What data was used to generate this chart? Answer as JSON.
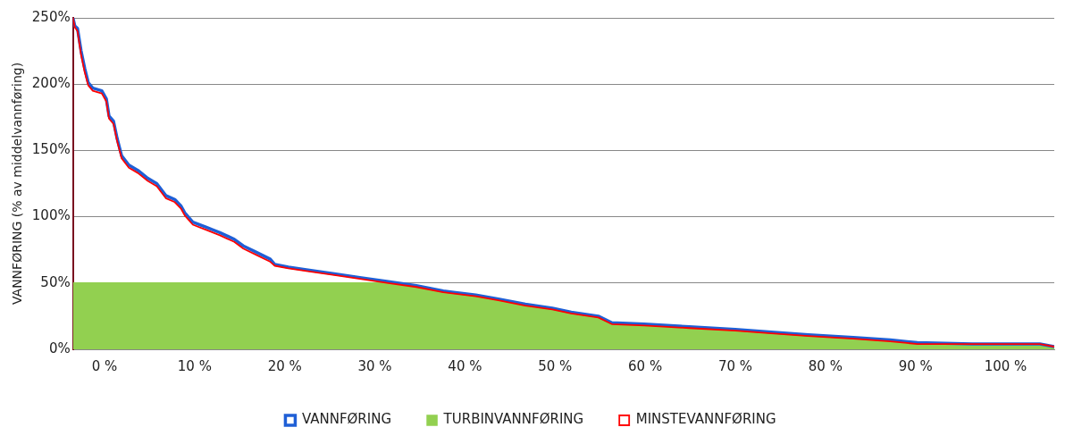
{
  "chart_data": {
    "type": "line",
    "ylabel": "VANNFØRING (% av middelvannføring)",
    "x": [
      -3.5,
      -3.3,
      -3.0,
      -2.6,
      -2.2,
      -1.8,
      -1.3,
      -0.3,
      0.2,
      0.5,
      1.0,
      1.4,
      1.9,
      2.7,
      3.7,
      4.8,
      5.8,
      6.8,
      7.8,
      8.5,
      8.9,
      9.8,
      11.3,
      12.8,
      14.4,
      15.4,
      16.9,
      18.4,
      18.9,
      20.4,
      22.4,
      25.5,
      28.5,
      31.5,
      34.6,
      37.6,
      41.2,
      43.7,
      46.7,
      49.7,
      51.8,
      54.8,
      56.3,
      59.9,
      64.9,
      70.0,
      74.0,
      78.1,
      83.1,
      87.2,
      90.2,
      96.3,
      103.8,
      105.4
    ],
    "series": [
      {
        "name": "VANNFØRING",
        "color": "#1f5fd6",
        "values": [
          250,
          244,
          242,
          225,
          212,
          201,
          197,
          195,
          189,
          176,
          172,
          159,
          146,
          139,
          135,
          129,
          125,
          116,
          113,
          108,
          103,
          96,
          92,
          88,
          83,
          78,
          73,
          68,
          64,
          62,
          60,
          57,
          54,
          51,
          48,
          44,
          41,
          38,
          34,
          31,
          28,
          25,
          20,
          19,
          17,
          15,
          13,
          11,
          9,
          7,
          5,
          4,
          4,
          2
        ]
      },
      {
        "name": "TURBINVANNFØRING",
        "type": "area",
        "color": "#92d050",
        "values": [
          50,
          50,
          50,
          50,
          50,
          50,
          50,
          50,
          50,
          50,
          50,
          50,
          50,
          50,
          50,
          50,
          50,
          50,
          50,
          50,
          50,
          50,
          50,
          50,
          50,
          50,
          50,
          50,
          50,
          50,
          50,
          50,
          50,
          50,
          47,
          43,
          40,
          37,
          33,
          30,
          27,
          24,
          19,
          18,
          16,
          14,
          12,
          10,
          8,
          6,
          4,
          4,
          4,
          2
        ]
      },
      {
        "name": "MINSTEVANNFØRING",
        "color": "#ff0000",
        "values": [
          250,
          243,
          240,
          222,
          209,
          199,
          195,
          193,
          187,
          174,
          170,
          157,
          144,
          137,
          133,
          127,
          123,
          114,
          111,
          106,
          101,
          94,
          90,
          86,
          81,
          76,
          71,
          66,
          63,
          61,
          59,
          56,
          53,
          50,
          47,
          43,
          40,
          37,
          33,
          30,
          27,
          24,
          19,
          18,
          16,
          14,
          12,
          10,
          8,
          6,
          4,
          4,
          4,
          2
        ]
      }
    ],
    "xlim": [
      -3.5,
      105.4
    ],
    "xticks": [
      {
        "value": 0,
        "label": "0 %"
      },
      {
        "value": 10,
        "label": "10 %"
      },
      {
        "value": 20,
        "label": "20 %"
      },
      {
        "value": 30,
        "label": "30 %"
      },
      {
        "value": 40,
        "label": "40 %"
      },
      {
        "value": 50,
        "label": "50 %"
      },
      {
        "value": 60,
        "label": "60 %"
      },
      {
        "value": 70,
        "label": "70 %"
      },
      {
        "value": 80,
        "label": "80 %"
      },
      {
        "value": 90,
        "label": "90 %"
      },
      {
        "value": 100,
        "label": "100 %"
      }
    ],
    "ylim": [
      0,
      250
    ],
    "yticks": [
      {
        "value": 0,
        "label": "0%"
      },
      {
        "value": 50,
        "label": "50%"
      },
      {
        "value": 100,
        "label": "100%"
      },
      {
        "value": 150,
        "label": "150%"
      },
      {
        "value": 200,
        "label": "200%"
      },
      {
        "value": 250,
        "label": "250%"
      }
    ],
    "grid": "y",
    "legend": "bottom",
    "marker": "none",
    "line_style": "solid"
  }
}
